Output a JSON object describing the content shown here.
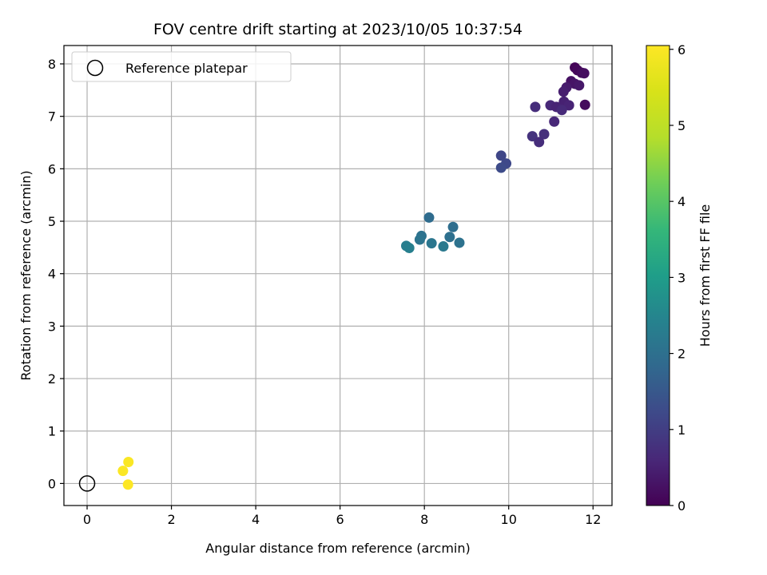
{
  "chart_data": {
    "type": "scatter",
    "title": "FOV centre drift starting at 2023/10/05 10:37:54",
    "xlabel": "Angular distance from reference (arcmin)",
    "ylabel": "Rotation from reference (arcmin)",
    "xlim": [
      -0.55,
      12.45
    ],
    "ylim": [
      -0.42,
      8.35
    ],
    "xticks": [
      0,
      2,
      4,
      6,
      8,
      10,
      12
    ],
    "yticks": [
      0,
      1,
      2,
      3,
      4,
      5,
      6,
      7,
      8
    ],
    "grid": true,
    "legend": {
      "position": "top-left",
      "entries": [
        "Reference platepar"
      ]
    },
    "reference_point": {
      "x": 0,
      "y": 0,
      "label": "Reference platepar"
    },
    "colorbar": {
      "label": "Hours from first FF file",
      "range": [
        0,
        6.05
      ],
      "ticks": [
        0,
        1,
        2,
        3,
        4,
        5,
        6
      ],
      "colormap": "viridis"
    },
    "points": [
      {
        "x": 11.57,
        "y": 7.93,
        "h": 0.05
      },
      {
        "x": 11.63,
        "y": 7.88,
        "h": 0.1
      },
      {
        "x": 11.73,
        "y": 7.83,
        "h": 0.15
      },
      {
        "x": 11.79,
        "y": 7.82,
        "h": 0.2
      },
      {
        "x": 11.48,
        "y": 7.67,
        "h": 0.25
      },
      {
        "x": 11.57,
        "y": 7.62,
        "h": 0.3
      },
      {
        "x": 11.67,
        "y": 7.59,
        "h": 0.35
      },
      {
        "x": 11.37,
        "y": 7.55,
        "h": 0.4
      },
      {
        "x": 11.3,
        "y": 7.47,
        "h": 0.45
      },
      {
        "x": 11.31,
        "y": 7.28,
        "h": 0.5
      },
      {
        "x": 11.81,
        "y": 7.22,
        "h": 0.15
      },
      {
        "x": 11.43,
        "y": 7.21,
        "h": 0.55
      },
      {
        "x": 10.99,
        "y": 7.21,
        "h": 0.6
      },
      {
        "x": 11.13,
        "y": 7.18,
        "h": 0.55
      },
      {
        "x": 11.26,
        "y": 7.12,
        "h": 0.65
      },
      {
        "x": 10.63,
        "y": 7.18,
        "h": 0.7
      },
      {
        "x": 11.08,
        "y": 6.9,
        "h": 0.6
      },
      {
        "x": 10.84,
        "y": 6.66,
        "h": 0.75
      },
      {
        "x": 10.56,
        "y": 6.62,
        "h": 0.8
      },
      {
        "x": 10.72,
        "y": 6.51,
        "h": 0.7
      },
      {
        "x": 9.82,
        "y": 6.25,
        "h": 1.15
      },
      {
        "x": 9.94,
        "y": 6.1,
        "h": 1.2
      },
      {
        "x": 9.82,
        "y": 6.02,
        "h": 1.25
      },
      {
        "x": 8.11,
        "y": 5.07,
        "h": 1.9
      },
      {
        "x": 8.68,
        "y": 4.89,
        "h": 1.95
      },
      {
        "x": 8.6,
        "y": 4.7,
        "h": 2.0
      },
      {
        "x": 7.93,
        "y": 4.72,
        "h": 2.05
      },
      {
        "x": 7.89,
        "y": 4.65,
        "h": 2.1
      },
      {
        "x": 8.83,
        "y": 4.59,
        "h": 2.05
      },
      {
        "x": 8.17,
        "y": 4.58,
        "h": 2.15
      },
      {
        "x": 8.45,
        "y": 4.52,
        "h": 2.2
      },
      {
        "x": 7.57,
        "y": 4.53,
        "h": 2.3
      },
      {
        "x": 7.64,
        "y": 4.49,
        "h": 2.35
      },
      {
        "x": 0.98,
        "y": 0.41,
        "h": 6.0
      },
      {
        "x": 0.85,
        "y": 0.24,
        "h": 6.02
      },
      {
        "x": 0.97,
        "y": -0.02,
        "h": 6.05
      }
    ]
  }
}
